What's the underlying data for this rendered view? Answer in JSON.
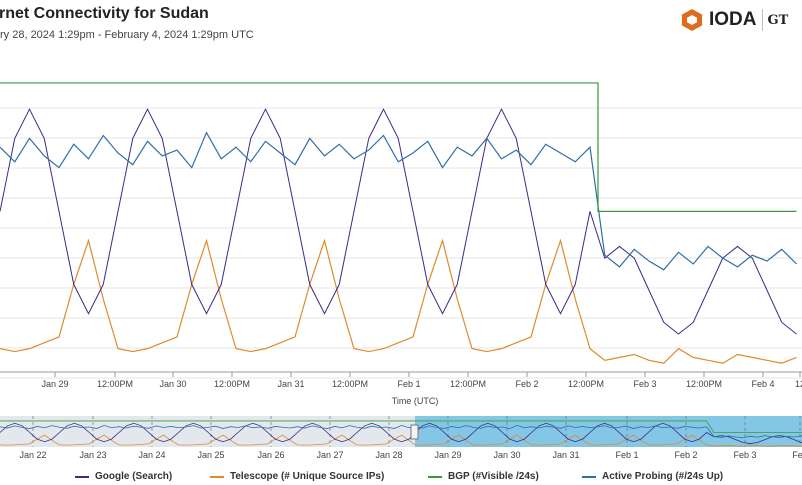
{
  "header": {
    "title": "rnet Connectivity for Sudan",
    "subtitle": "ry 28, 2024 1:29pm - February 4, 2024 1:29pm UTC",
    "logo": "IODA",
    "logo2": "GT"
  },
  "colors": {
    "google": "#3b2a8a",
    "telescope": "#e08a2c",
    "bgp": "#3a9a3a",
    "probing": "#2f6fa8"
  },
  "chart_data": {
    "type": "line",
    "title": "Internet Connectivity for Sudan",
    "xlabel": "Time (UTC)",
    "ylabel": "",
    "x_unit": "hours since Jan 28 12:50 UTC (3h step)",
    "x_start": 0,
    "x_step": 3,
    "ylim": [
      0,
      1
    ],
    "ticks": [
      "Jan 29",
      "12:00PM",
      "Jan 30",
      "12:00PM",
      "Jan 31",
      "12:00PM",
      "Feb 1",
      "12:00PM",
      "Feb 2",
      "12:00PM",
      "Feb 3",
      "12:00PM",
      "Feb 4",
      "12"
    ],
    "overview_ticks": [
      "Jan 22",
      "Jan 23",
      "Jan 24",
      "Jan 25",
      "Jan 26",
      "Jan 27",
      "Jan 28",
      "Jan 29",
      "Jan 30",
      "Jan 31",
      "Feb 1",
      "Feb 2",
      "Feb 3",
      "Feb"
    ],
    "series": [
      {
        "key": "google",
        "name": "Google (Search)",
        "values": [
          0.55,
          0.8,
          0.9,
          0.8,
          0.55,
          0.3,
          0.2,
          0.3,
          0.55,
          0.8,
          0.9,
          0.8,
          0.55,
          0.3,
          0.2,
          0.3,
          0.55,
          0.8,
          0.9,
          0.8,
          0.55,
          0.3,
          0.2,
          0.3,
          0.55,
          0.8,
          0.9,
          0.8,
          0.55,
          0.3,
          0.2,
          0.3,
          0.55,
          0.8,
          0.9,
          0.8,
          0.55,
          0.3,
          0.2,
          0.3,
          0.55,
          0.39,
          0.43,
          0.39,
          0.28,
          0.17,
          0.13,
          0.17,
          0.28,
          0.39,
          0.43,
          0.39,
          0.28,
          0.17,
          0.13
        ]
      },
      {
        "key": "telescope",
        "name": "Telescope (# Unique Source IPs)",
        "values": [
          0.08,
          0.07,
          0.08,
          0.1,
          0.12,
          0.3,
          0.45,
          0.25,
          0.08,
          0.07,
          0.08,
          0.1,
          0.12,
          0.3,
          0.45,
          0.25,
          0.08,
          0.07,
          0.08,
          0.1,
          0.12,
          0.3,
          0.45,
          0.25,
          0.08,
          0.07,
          0.08,
          0.1,
          0.12,
          0.3,
          0.45,
          0.25,
          0.08,
          0.07,
          0.08,
          0.1,
          0.12,
          0.3,
          0.45,
          0.25,
          0.08,
          0.04,
          0.05,
          0.06,
          0.04,
          0.03,
          0.08,
          0.05,
          0.04,
          0.03,
          0.06,
          0.05,
          0.04,
          0.03,
          0.05
        ]
      },
      {
        "key": "bgp",
        "name": "BGP (#Visible /24s)",
        "values": [
          0.99,
          0.99,
          0.99,
          0.99,
          0.99,
          0.99,
          0.99,
          0.99,
          0.99,
          0.99,
          0.99,
          0.99,
          0.99,
          0.99,
          0.99,
          0.99,
          0.99,
          0.99,
          0.99,
          0.99,
          0.99,
          0.99,
          0.99,
          0.99,
          0.99,
          0.99,
          0.99,
          0.99,
          0.99,
          0.99,
          0.99,
          0.99,
          0.99,
          0.99,
          0.99,
          0.99,
          0.99,
          0.99,
          0.99,
          0.99,
          0.99,
          0.55,
          0.55,
          0.55,
          0.55,
          0.55,
          0.55,
          0.55,
          0.55,
          0.55,
          0.55,
          0.55,
          0.55,
          0.55,
          0.55
        ]
      },
      {
        "key": "probing",
        "name": "Active Probing (#/24s Up)",
        "values": [
          0.77,
          0.72,
          0.8,
          0.74,
          0.7,
          0.78,
          0.73,
          0.81,
          0.75,
          0.71,
          0.79,
          0.74,
          0.76,
          0.7,
          0.82,
          0.73,
          0.77,
          0.72,
          0.79,
          0.75,
          0.71,
          0.8,
          0.74,
          0.78,
          0.73,
          0.76,
          0.81,
          0.72,
          0.75,
          0.79,
          0.7,
          0.77,
          0.74,
          0.8,
          0.73,
          0.76,
          0.71,
          0.78,
          0.75,
          0.72,
          0.77,
          0.4,
          0.36,
          0.42,
          0.38,
          0.35,
          0.41,
          0.37,
          0.43,
          0.39,
          0.36,
          0.4,
          0.38,
          0.42,
          0.37
        ]
      }
    ]
  }
}
